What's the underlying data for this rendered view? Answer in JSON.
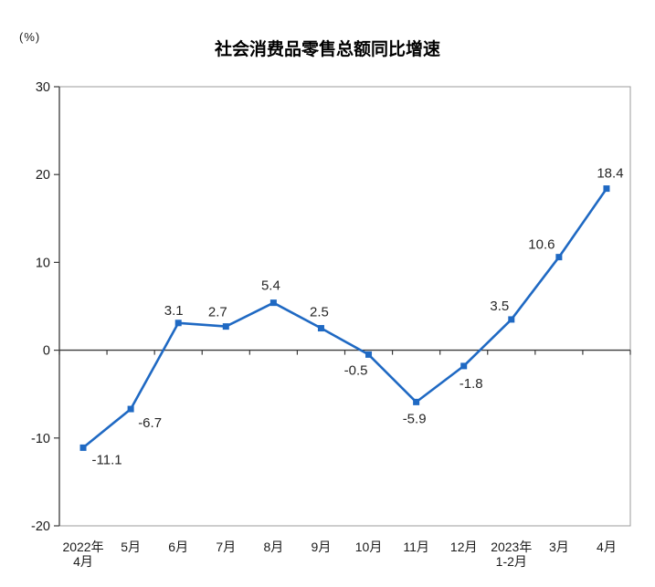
{
  "chart_data": {
    "type": "line",
    "title": "社会消费品零售总额同比增速",
    "unit_label": "(%)",
    "categories": [
      [
        "2022年",
        "4月"
      ],
      [
        "5月"
      ],
      [
        "6月"
      ],
      [
        "7月"
      ],
      [
        "8月"
      ],
      [
        "9月"
      ],
      [
        "10月"
      ],
      [
        "11月"
      ],
      [
        "12月"
      ],
      [
        "2023年",
        "1-2月"
      ],
      [
        "3月"
      ],
      [
        "4月"
      ]
    ],
    "values": [
      -11.1,
      -6.7,
      3.1,
      2.7,
      5.4,
      2.5,
      -0.5,
      -5.9,
      -1.8,
      3.5,
      10.6,
      18.4
    ],
    "data_labels": [
      "-11.1",
      "-6.7",
      "3.1",
      "2.7",
      "5.4",
      "2.5",
      "-0.5",
      "-5.9",
      "-1.8",
      "3.5",
      "10.6",
      "18.4"
    ],
    "ylim": [
      -20,
      30
    ],
    "yticks": [
      30,
      20,
      10,
      0,
      -10,
      -20
    ],
    "series_name": "社会消费品零售总额同比增速",
    "marker": "square",
    "grid": "off",
    "legend": "none",
    "line_color": "#1f69c3",
    "marker_color": "#1f69c3",
    "data_label_color": "#262626",
    "tick_label_color": "#1a1a1a",
    "axis_color": "#3a3a3a",
    "frame_color": "#9b9b9b",
    "background_color": "#ffffff"
  }
}
